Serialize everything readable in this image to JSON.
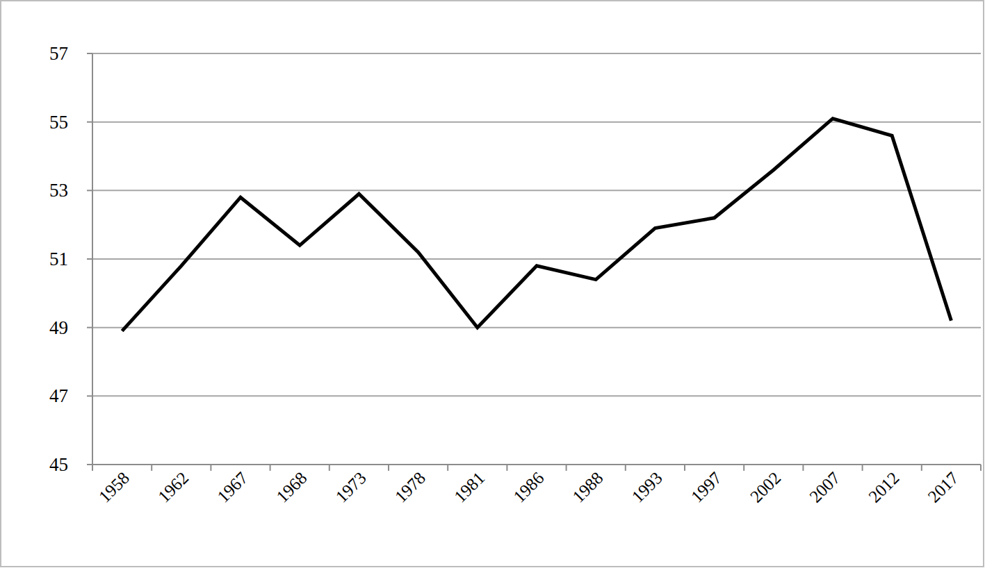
{
  "chart_data": {
    "type": "line",
    "categories": [
      "1958",
      "1962",
      "1967",
      "1968",
      "1973",
      "1978",
      "1981",
      "1986",
      "1988",
      "1993",
      "1997",
      "2002",
      "2007",
      "2012",
      "2017"
    ],
    "values": [
      48.9,
      50.8,
      52.8,
      51.4,
      52.9,
      51.2,
      49.0,
      50.8,
      50.4,
      51.9,
      52.2,
      53.6,
      55.1,
      54.6,
      49.2
    ],
    "color": "#000000",
    "ylim": [
      45,
      57
    ],
    "yticks": [
      45,
      47,
      49,
      51,
      53,
      55,
      57
    ],
    "grid": true
  }
}
